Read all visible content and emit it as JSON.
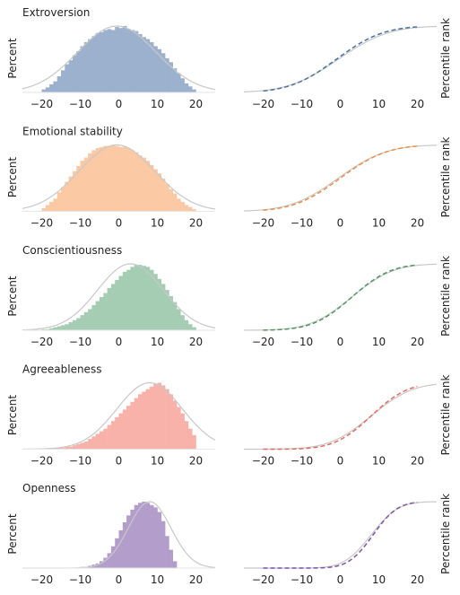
{
  "figure": {
    "left_ylabel": "Percent",
    "right_ylabel": "Percentile rank",
    "x_ticks": [
      -20,
      -10,
      0,
      10,
      20
    ]
  },
  "chart_data": [
    {
      "type": "bar",
      "title": "Extroversion",
      "color": "#9cb1cd",
      "curve_color": "#4e73a0",
      "fit_color": "#c8c8c8",
      "xlim": [
        -25,
        25
      ],
      "bin_start": -20,
      "bin_width": 1,
      "hist": [
        0.3,
        0.5,
        0.8,
        1.1,
        1.6,
        2.2,
        2.8,
        3.2,
        3.7,
        4.1,
        4.6,
        5.0,
        5.3,
        5.6,
        5.9,
        6.0,
        6.2,
        6.3,
        6.2,
        6.5,
        6.4,
        6.6,
        6.3,
        6.2,
        6.1,
        5.8,
        5.5,
        5.3,
        5.0,
        4.6,
        4.3,
        3.9,
        3.4,
        3.0,
        2.4,
        1.9,
        1.4,
        0.9,
        0.6,
        0.3
      ],
      "fit_mean": -0.5,
      "fit_sd": 10.2,
      "fit_peak": 6.6,
      "cdf_mean": -1.0,
      "cdf_sd": 9.5
    },
    {
      "type": "bar",
      "title": "Emotional stability",
      "color": "#fcc9a5",
      "curve_color": "#e8904f",
      "fit_color": "#c8c8c8",
      "xlim": [
        -25,
        25
      ],
      "bin_start": -20,
      "bin_width": 1,
      "hist": [
        0.3,
        0.6,
        0.9,
        1.2,
        1.8,
        2.3,
        2.8,
        3.3,
        3.8,
        4.3,
        4.8,
        5.1,
        5.5,
        5.8,
        6.0,
        6.1,
        6.2,
        6.2,
        6.3,
        6.2,
        6.1,
        6.2,
        6.0,
        5.8,
        5.6,
        5.3,
        5.1,
        4.8,
        4.4,
        4.0,
        3.6,
        3.1,
        2.6,
        2.1,
        1.7,
        1.2,
        0.9,
        0.6,
        0.4,
        0.2
      ],
      "fit_mean": -0.5,
      "fit_sd": 9.8,
      "fit_peak": 6.3,
      "cdf_mean": 0.0,
      "cdf_sd": 9.5
    },
    {
      "type": "bar",
      "title": "Conscientiousness",
      "color": "#a5cdb4",
      "curve_color": "#54945f",
      "fit_color": "#c8c8c8",
      "xlim": [
        -25,
        25
      ],
      "bin_start": -20,
      "bin_width": 1,
      "hist": [
        0.1,
        0.1,
        0.2,
        0.3,
        0.4,
        0.5,
        0.6,
        0.8,
        1.0,
        1.2,
        1.5,
        1.8,
        2.1,
        2.5,
        2.9,
        3.3,
        3.7,
        4.2,
        4.6,
        5.0,
        5.4,
        5.8,
        6.0,
        6.3,
        6.5,
        6.5,
        6.4,
        6.3,
        6.0,
        5.6,
        5.1,
        4.6,
        4.0,
        3.4,
        2.8,
        2.1,
        1.5,
        1.0,
        0.6,
        0.3
      ],
      "fit_mean": 3.0,
      "fit_sd": 8.5,
      "fit_peak": 6.6,
      "cdf_mean": 3.0,
      "cdf_sd": 8.0
    },
    {
      "type": "bar",
      "title": "Agreeableness",
      "color": "#f9b2aa",
      "curve_color": "#e06d60",
      "fit_color": "#c8c8c8",
      "xlim": [
        -25,
        25
      ],
      "bin_start": -20,
      "bin_width": 1,
      "hist": [
        0.0,
        0.0,
        0.1,
        0.1,
        0.1,
        0.1,
        0.2,
        0.2,
        0.3,
        0.4,
        0.5,
        0.6,
        0.8,
        1.0,
        1.2,
        1.4,
        1.6,
        1.9,
        2.2,
        2.5,
        2.8,
        3.1,
        3.4,
        3.7,
        4.0,
        4.3,
        4.5,
        4.7,
        4.9,
        5.1,
        5.2,
        5.0,
        4.7,
        4.3,
        3.8,
        3.3,
        2.8,
        2.2,
        1.6,
        1.1
      ],
      "fit_mean": 8.0,
      "fit_sd": 8.5,
      "fit_peak": 5.2,
      "cdf_mean": 8.0,
      "cdf_sd": 7.5
    },
    {
      "type": "bar",
      "title": "Openness",
      "color": "#b39dcb",
      "curve_color": "#7e54a8",
      "fit_color": "#c8c8c8",
      "xlim": [
        -25,
        25
      ],
      "bin_start": -20,
      "bin_width": 1,
      "hist": [
        0.0,
        0.0,
        0.0,
        0.0,
        0.0,
        0.0,
        0.0,
        0.0,
        0.0,
        0.0,
        0.1,
        0.1,
        0.2,
        0.3,
        0.4,
        0.6,
        0.9,
        1.3,
        1.9,
        2.6,
        3.3,
        4.0,
        4.6,
        5.1,
        5.5,
        5.7,
        5.8,
        5.7,
        5.5,
        5.3,
        4.9,
        4.1,
        2.8,
        1.6,
        0.6,
        0.0,
        0.0,
        0.0,
        0.0,
        0.0
      ],
      "fit_mean": 8.0,
      "fit_sd": 5.5,
      "fit_peak": 5.8,
      "cdf_mean": 8.5,
      "cdf_sd": 5.0
    }
  ]
}
